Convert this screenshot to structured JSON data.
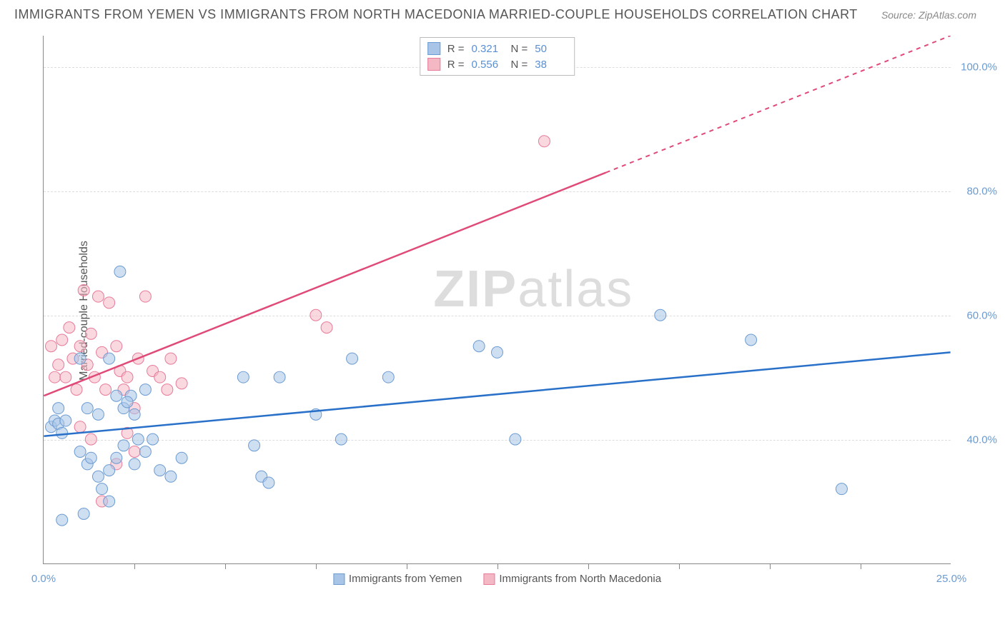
{
  "title": "IMMIGRANTS FROM YEMEN VS IMMIGRANTS FROM NORTH MACEDONIA MARRIED-COUPLE HOUSEHOLDS CORRELATION CHART",
  "source": "Source: ZipAtlas.com",
  "y_axis_label": "Married-couple Households",
  "watermark_bold": "ZIP",
  "watermark_light": "atlas",
  "colors": {
    "series1_fill": "#a8c5e8",
    "series1_stroke": "#6b9bd1",
    "series2_fill": "#f4b8c5",
    "series2_stroke": "#e87a9a",
    "line1": "#2970c9",
    "line2": "#e04a78",
    "grid": "#dddddd",
    "axis": "#888888",
    "tick_text": "#6b9bd1",
    "text": "#555555"
  },
  "chart": {
    "type": "scatter",
    "xlim": [
      0,
      25
    ],
    "ylim": [
      20,
      105
    ],
    "x_ticks": [
      0,
      25
    ],
    "x_tick_minor": [
      2.5,
      5,
      7.5,
      10,
      12.5,
      15,
      17.5,
      20,
      22.5
    ],
    "y_ticks": [
      40,
      60,
      80,
      100
    ],
    "marker_radius": 8,
    "marker_opacity": 0.55
  },
  "stats": [
    {
      "r_label": "R =",
      "r_val": "0.321",
      "n_label": "N =",
      "n_val": "50",
      "color_key": "series1"
    },
    {
      "r_label": "R =",
      "r_val": "0.556",
      "n_label": "N =",
      "n_val": "38",
      "color_key": "series2"
    }
  ],
  "legend": [
    {
      "label": "Immigrants from Yemen",
      "color_key": "series1"
    },
    {
      "label": "Immigrants from North Macedonia",
      "color_key": "series2"
    }
  ],
  "trend_lines": [
    {
      "x1": 0,
      "y1": 40.5,
      "x2": 25,
      "y2": 54,
      "color_key": "line1",
      "dash_from_x": null
    },
    {
      "x1": 0,
      "y1": 47,
      "x2": 25,
      "y2": 105,
      "color_key": "line2",
      "dash_from_x": 15.5
    }
  ],
  "series1_points": [
    [
      0.2,
      42
    ],
    [
      0.3,
      43
    ],
    [
      0.4,
      42.5
    ],
    [
      0.5,
      41
    ],
    [
      0.6,
      43
    ],
    [
      0.4,
      45
    ],
    [
      1.0,
      53
    ],
    [
      1.2,
      45
    ],
    [
      1.5,
      44
    ],
    [
      1.8,
      53
    ],
    [
      2.0,
      47
    ],
    [
      2.2,
      45
    ],
    [
      2.4,
      47
    ],
    [
      2.5,
      44
    ],
    [
      2.6,
      40
    ],
    [
      2.8,
      48
    ],
    [
      1.0,
      38
    ],
    [
      1.2,
      36
    ],
    [
      1.3,
      37
    ],
    [
      1.5,
      34
    ],
    [
      1.6,
      32
    ],
    [
      1.8,
      35
    ],
    [
      2.0,
      37
    ],
    [
      2.2,
      39
    ],
    [
      2.5,
      36
    ],
    [
      2.8,
      38
    ],
    [
      3.0,
      40
    ],
    [
      3.2,
      35
    ],
    [
      3.5,
      34
    ],
    [
      3.8,
      37
    ],
    [
      0.5,
      27
    ],
    [
      1.1,
      28
    ],
    [
      1.8,
      30
    ],
    [
      2.1,
      67
    ],
    [
      2.3,
      46
    ],
    [
      5.5,
      50
    ],
    [
      5.8,
      39
    ],
    [
      6.0,
      34
    ],
    [
      6.2,
      33
    ],
    [
      6.5,
      50
    ],
    [
      7.5,
      44
    ],
    [
      8.2,
      40
    ],
    [
      8.5,
      53
    ],
    [
      9.5,
      50
    ],
    [
      12.0,
      55
    ],
    [
      12.5,
      54
    ],
    [
      13.0,
      40
    ],
    [
      17.0,
      60
    ],
    [
      19.5,
      56
    ],
    [
      22.0,
      32
    ]
  ],
  "series2_points": [
    [
      0.2,
      55
    ],
    [
      0.3,
      50
    ],
    [
      0.4,
      52
    ],
    [
      0.5,
      56
    ],
    [
      0.6,
      50
    ],
    [
      0.7,
      58
    ],
    [
      0.8,
      53
    ],
    [
      0.9,
      48
    ],
    [
      1.0,
      55
    ],
    [
      1.1,
      64
    ],
    [
      1.2,
      52
    ],
    [
      1.3,
      57
    ],
    [
      1.4,
      50
    ],
    [
      1.5,
      63
    ],
    [
      1.6,
      54
    ],
    [
      1.7,
      48
    ],
    [
      1.8,
      62
    ],
    [
      2.0,
      55
    ],
    [
      2.1,
      51
    ],
    [
      2.2,
      48
    ],
    [
      2.3,
      50
    ],
    [
      2.5,
      45
    ],
    [
      2.6,
      53
    ],
    [
      2.8,
      63
    ],
    [
      3.0,
      51
    ],
    [
      3.2,
      50
    ],
    [
      3.4,
      48
    ],
    [
      3.5,
      53
    ],
    [
      1.0,
      42
    ],
    [
      1.3,
      40
    ],
    [
      1.6,
      30
    ],
    [
      2.0,
      36
    ],
    [
      2.3,
      41
    ],
    [
      2.5,
      38
    ],
    [
      3.8,
      49
    ],
    [
      7.5,
      60
    ],
    [
      7.8,
      58
    ],
    [
      13.8,
      88
    ]
  ]
}
